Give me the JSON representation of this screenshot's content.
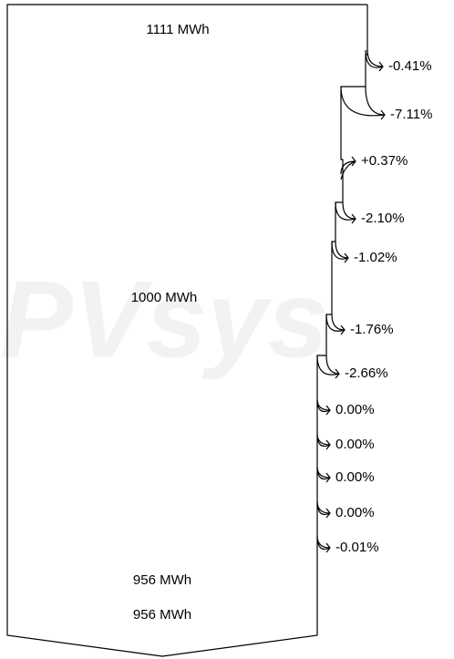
{
  "watermark": "PVsys",
  "energy_labels": {
    "top": "1111 MWh",
    "middle": "1000 MWh",
    "bottom_1": "956 MWh",
    "bottom_2": "956 MWh"
  },
  "losses": [
    {
      "label": "-0.41%"
    },
    {
      "label": "-7.11%"
    },
    {
      "label": "+0.37%"
    },
    {
      "label": "-2.10%"
    },
    {
      "label": "-1.02%"
    },
    {
      "label": "-1.76%"
    },
    {
      "label": "-2.66%"
    },
    {
      "label": "0.00%"
    },
    {
      "label": "0.00%"
    },
    {
      "label": "0.00%"
    },
    {
      "label": "0.00%"
    },
    {
      "label": "-0.01%"
    }
  ]
}
